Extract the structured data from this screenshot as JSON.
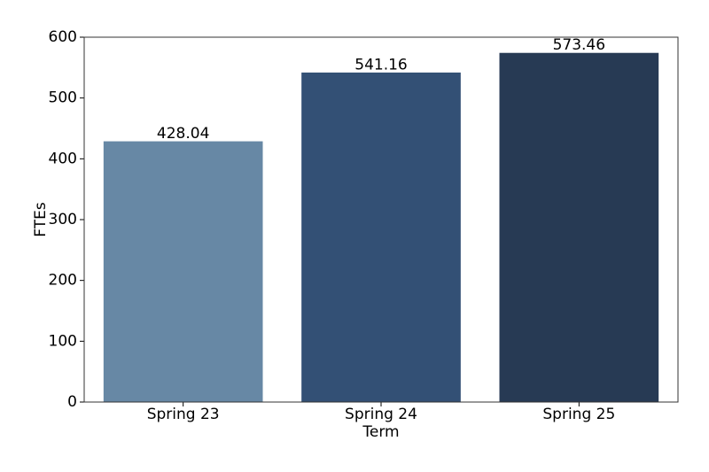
{
  "chart_data": {
    "type": "bar",
    "categories": [
      "Spring 23",
      "Spring 24",
      "Spring 25"
    ],
    "values": [
      428.04,
      541.16,
      573.46
    ],
    "colors": [
      "#6788a5",
      "#335075",
      "#273a54"
    ],
    "x_label": "Term",
    "y_label": "FTEs",
    "ylim": [
      0,
      600
    ],
    "yticks": [
      0,
      100,
      200,
      300,
      400,
      500,
      600
    ]
  }
}
